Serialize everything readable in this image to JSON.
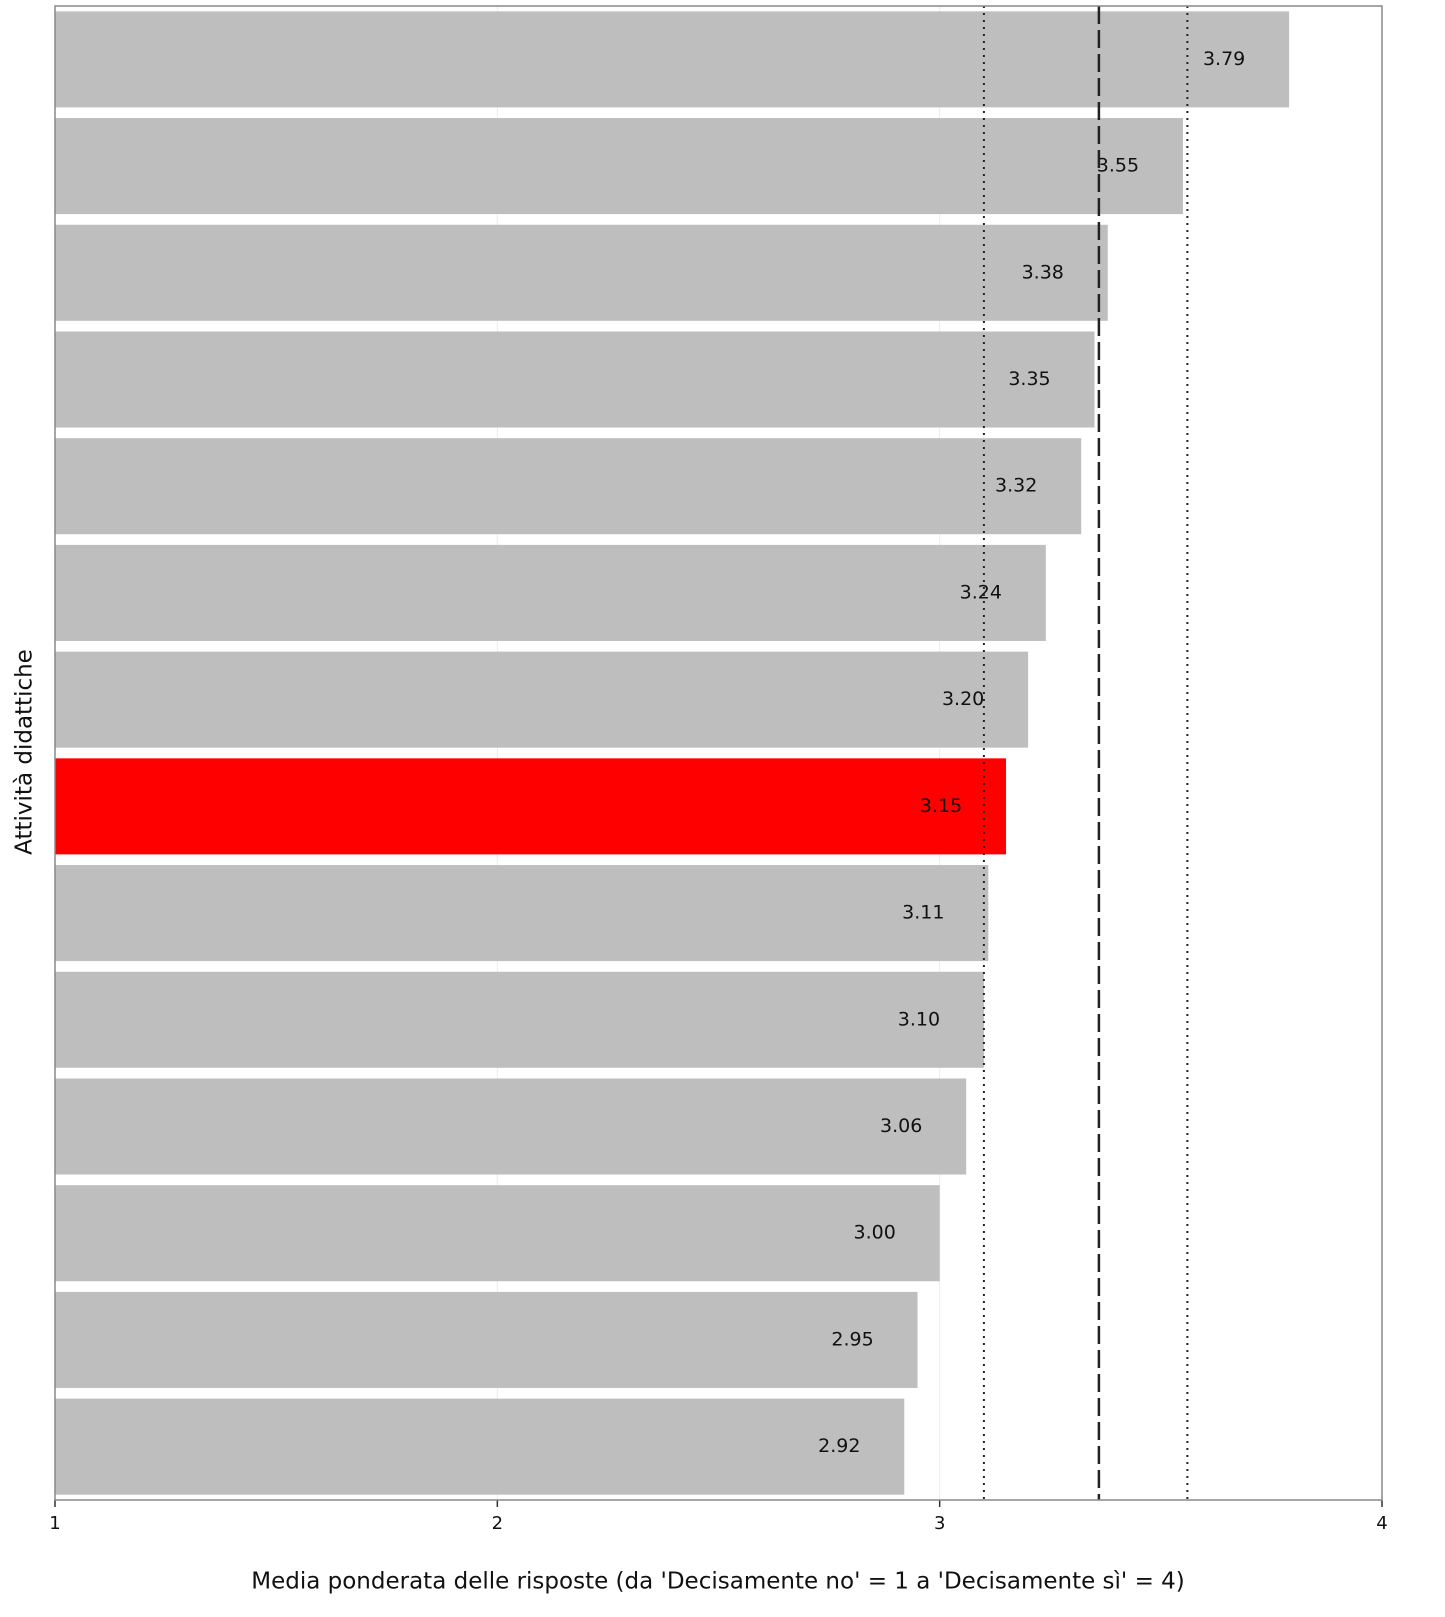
{
  "chart_data": {
    "type": "hbar",
    "xlabel": "Media ponderata delle risposte (da 'Decisamente no' = 1 a 'Decisamente sì' = 4)",
    "ylabel": "Attività didattiche",
    "categories": [
      null,
      null,
      null,
      null,
      null,
      null,
      null,
      null,
      null,
      null,
      null,
      null,
      null,
      null
    ],
    "values": [
      3.79,
      3.55,
      3.38,
      3.35,
      3.32,
      3.24,
      3.2,
      3.15,
      3.11,
      3.1,
      3.06,
      3.0,
      2.95,
      2.92
    ],
    "value_labels": [
      "3.79",
      "3.55",
      "3.38",
      "3.35",
      "3.32",
      "3.24",
      "3.20",
      "3.15",
      "3.11",
      "3.10",
      "3.06",
      "3.00",
      "2.95",
      "2.92"
    ],
    "colors": [
      "#bebebe",
      "#bebebe",
      "#bebebe",
      "#bebebe",
      "#bebebe",
      "#bebebe",
      "#bebebe",
      "#ff0000",
      "#bebebe",
      "#bebebe",
      "#bebebe",
      "#bebebe",
      "#bebebe",
      "#bebebe"
    ],
    "xlim": [
      1,
      4
    ],
    "xticks": [
      1,
      2,
      3,
      4
    ],
    "grid": true,
    "reference_lines": [
      {
        "value": 3.36,
        "style": "dashed"
      },
      {
        "value": 3.1,
        "style": "dotted"
      },
      {
        "value": 3.56,
        "style": "dotted"
      }
    ]
  }
}
